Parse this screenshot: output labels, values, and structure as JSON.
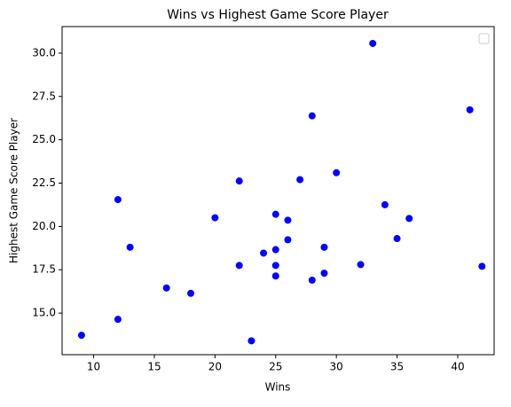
{
  "chart_data": {
    "type": "scatter",
    "title": "Wins vs Highest Game Score Player",
    "x_label": "Wins",
    "y_label": "Highest Game Score Player",
    "color": "#0000ff",
    "x": [
      9,
      12,
      12,
      13,
      16,
      18,
      20,
      22,
      22,
      23,
      24,
      25,
      25,
      25,
      25,
      26,
      26,
      27,
      28,
      28,
      29,
      29,
      30,
      32,
      33,
      34,
      35,
      36,
      41,
      42
    ],
    "y": [
      13.72,
      21.55,
      14.64,
      18.8,
      16.45,
      16.14,
      20.5,
      22.62,
      17.75,
      13.4,
      18.46,
      20.7,
      18.66,
      17.75,
      17.14,
      20.36,
      19.23,
      22.7,
      26.38,
      16.9,
      18.8,
      17.3,
      23.1,
      17.8,
      30.56,
      21.25,
      19.3,
      20.46,
      26.73,
      17.7
    ],
    "xlim": [
      7.4,
      43.0
    ],
    "xticks": [
      10,
      15,
      20,
      25,
      30,
      35,
      40
    ],
    "ylim": [
      12.6,
      31.53
    ],
    "yticks": [
      {
        "value": 15,
        "label": "15.0"
      },
      17.5,
      {
        "value": 20,
        "label": "20.0"
      },
      22.5,
      {
        "value": 25,
        "label": "25.0"
      },
      27.5,
      {
        "value": 30,
        "label": "30.0"
      }
    ],
    "legend": "upper right"
  }
}
